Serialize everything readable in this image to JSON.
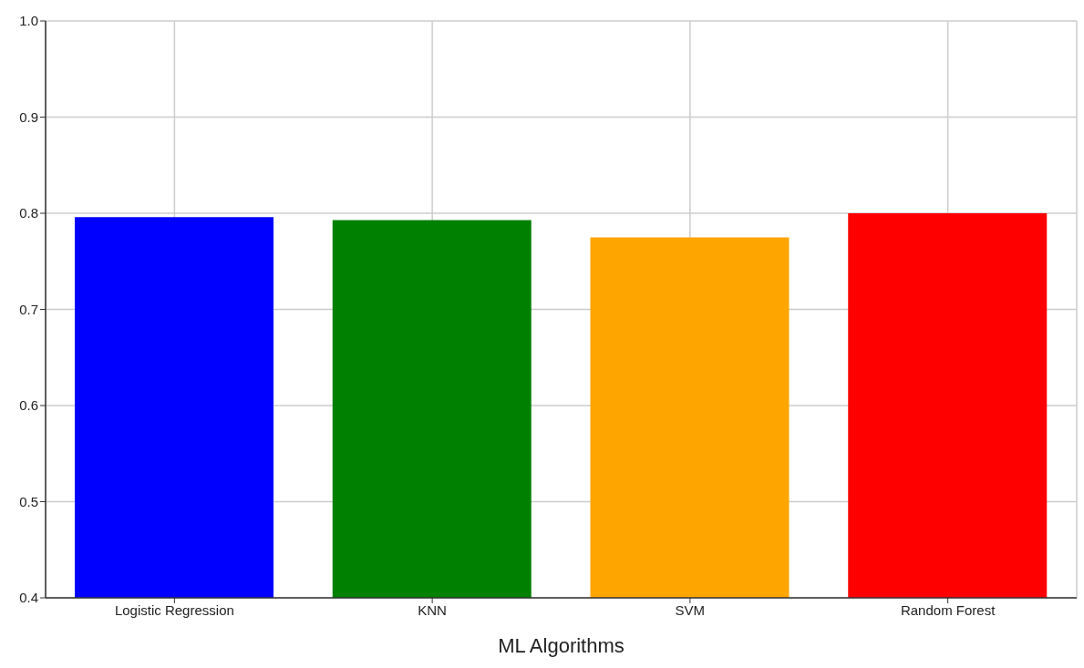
{
  "chart_data": {
    "type": "bar",
    "xlabel": "ML Algorithms",
    "categories": [
      "Logistic Regression",
      "KNN",
      "SVM",
      "Random Forest"
    ],
    "values": [
      0.796,
      0.793,
      0.775,
      0.8
    ],
    "colors": [
      "#0000ff",
      "#008000",
      "#ffa500",
      "#ff0000"
    ],
    "ylim": [
      0.4,
      1.0
    ],
    "yticks": [
      0.4,
      0.5,
      0.6,
      0.7,
      0.8,
      0.9,
      {
        "value": 1,
        "label": "1.0"
      }
    ],
    "grid": true
  }
}
